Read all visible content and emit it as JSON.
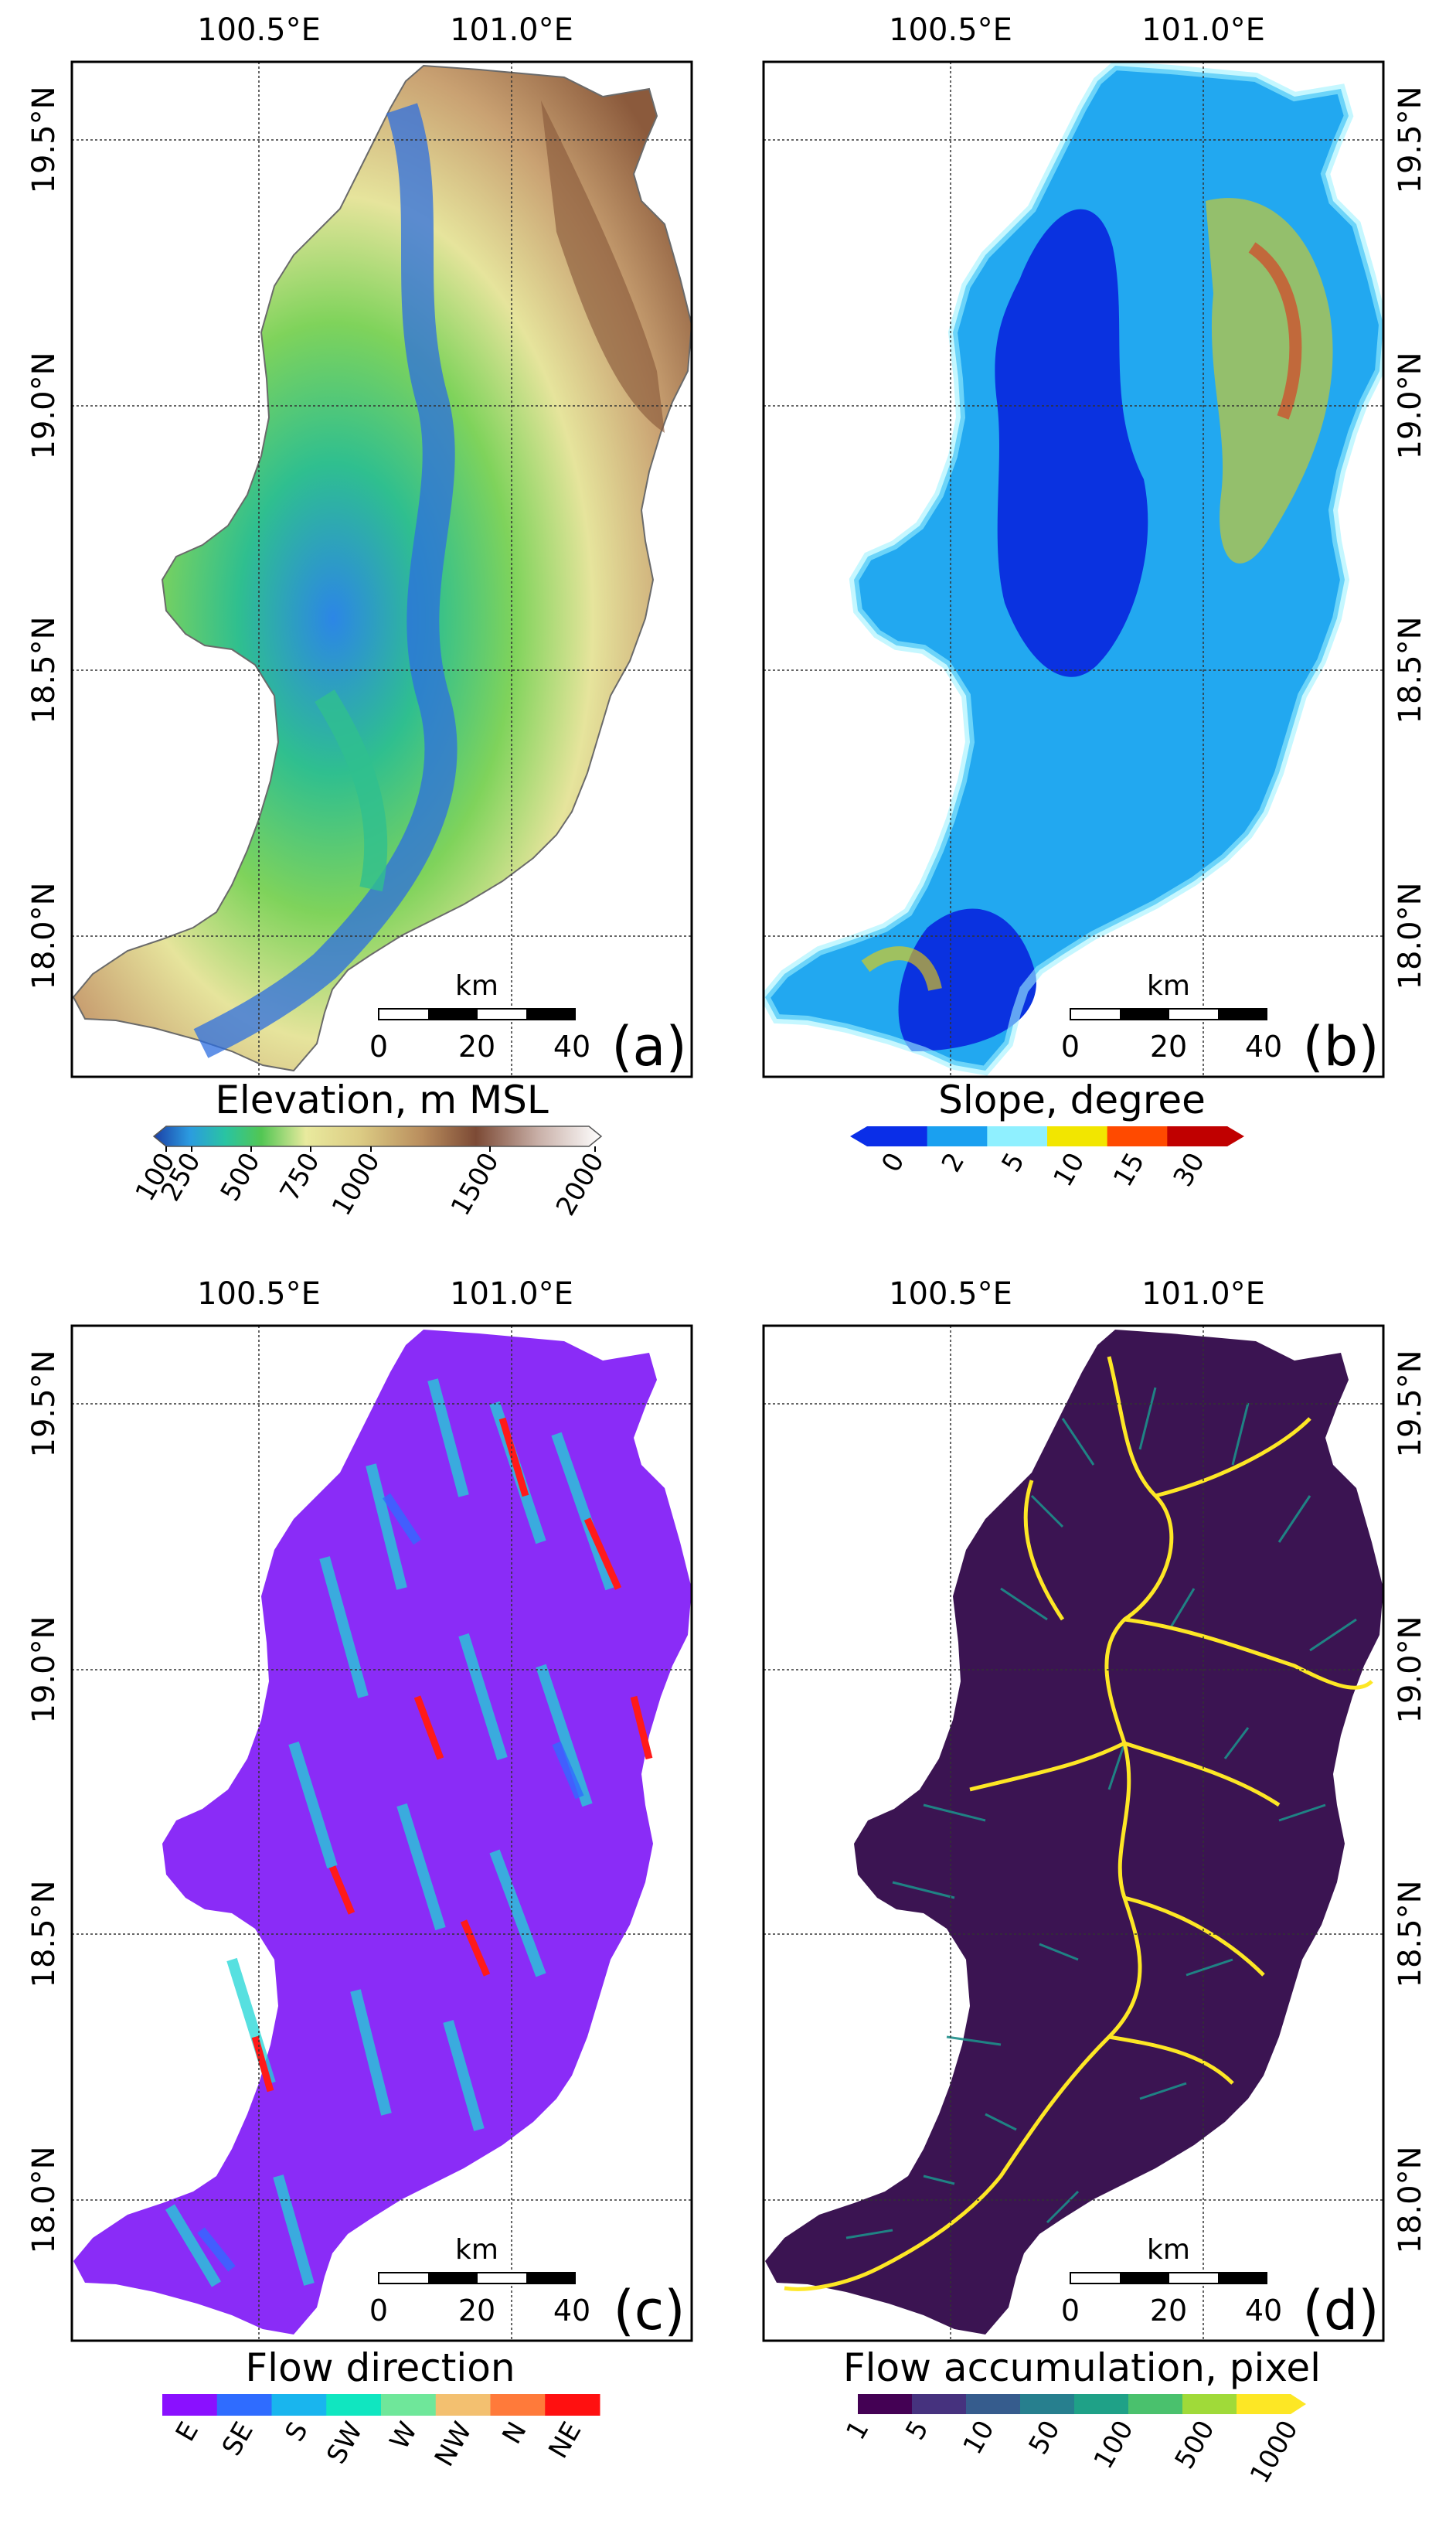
{
  "figure": {
    "panels": [
      {
        "id": "a",
        "panel_label": "(a)",
        "lon_labels": [
          "100.5°E",
          "101.0°E"
        ],
        "lat_labels": [
          "19.5°N",
          "19.0°N",
          "18.5°N",
          "18.0°N"
        ],
        "lat_label_side": "left",
        "scale_bar": {
          "unit": "km",
          "ticks": [
            "0",
            "20",
            "40"
          ]
        },
        "colorbar": {
          "title": "Elevation, m MSL",
          "type": "continuous",
          "tick_labels": [
            "100",
            "250",
            "500",
            "750",
            "1000",
            "1500",
            "2000"
          ],
          "colors": [
            "#1c3fa6",
            "#2b9be0",
            "#29c4a2",
            "#52c653",
            "#e9ea9e",
            "#dccc84",
            "#b98d5d",
            "#7c4a35",
            "#c9b0a8",
            "#ffffff"
          ]
        },
        "map_colors": {
          "lowland": "#2f8fe0",
          "plain": "#35c07e",
          "hills": "#e4e39a",
          "mountains": "#8b5a3c"
        }
      },
      {
        "id": "b",
        "panel_label": "(b)",
        "lon_labels": [
          "100.5°E",
          "101.0°E"
        ],
        "lat_labels": [
          "19.5°N",
          "19.0°N",
          "18.5°N",
          "18.0°N"
        ],
        "lat_label_side": "right",
        "scale_bar": {
          "unit": "km",
          "ticks": [
            "0",
            "20",
            "40"
          ]
        },
        "colorbar": {
          "title": "Slope, degree",
          "type": "discrete",
          "tick_labels": [
            "0",
            "2",
            "5",
            "10",
            "15",
            "30"
          ],
          "colors": [
            "#0a2ee8",
            "#1aa0f0",
            "#8ff0ff",
            "#f2e600",
            "#ff4a00",
            "#c00000"
          ]
        },
        "map_colors": {
          "flat": "#0a32e0",
          "gentle": "#22a8f0",
          "moderate": "#9ff2ff",
          "steep": "#f3d200",
          "very_steep": "#e0301a"
        }
      },
      {
        "id": "c",
        "panel_label": "(c)",
        "lon_labels": [
          "100.5°E",
          "101.0°E"
        ],
        "lat_labels": [
          "19.5°N",
          "19.0°N",
          "18.5°N",
          "18.0°N"
        ],
        "lat_label_side": "left",
        "scale_bar": {
          "unit": "km",
          "ticks": [
            "0",
            "20",
            "40"
          ]
        },
        "colorbar": {
          "title": "Flow direction",
          "type": "categorical",
          "tick_labels": [
            "E",
            "SE",
            "S",
            "SW",
            "W",
            "NW",
            "N",
            "NE"
          ],
          "colors": [
            "#8a10ff",
            "#2f6cff",
            "#19b5ee",
            "#10e6c0",
            "#6fe79a",
            "#f3c070",
            "#ff7a3a",
            "#ff1010"
          ]
        },
        "map_colors": {
          "base": "#8a2cf7",
          "streaks": "#1fd5d5",
          "accent": "#ff1a1a"
        }
      },
      {
        "id": "d",
        "panel_label": "(d)",
        "lon_labels": [
          "100.5°E",
          "101.0°E"
        ],
        "lat_labels": [
          "19.5°N",
          "19.0°N",
          "18.5°N",
          "18.0°N"
        ],
        "lat_label_side": "right",
        "scale_bar": {
          "unit": "km",
          "ticks": [
            "0",
            "20",
            "40"
          ]
        },
        "colorbar": {
          "title": "Flow accumulation, pixel",
          "type": "discrete",
          "tick_labels": [
            "1",
            "5",
            "10",
            "50",
            "100",
            "500",
            "1000"
          ],
          "colors": [
            "#440154",
            "#46327e",
            "#365c8d",
            "#277f8e",
            "#1fa187",
            "#4ac16d",
            "#a0da39",
            "#fde725"
          ]
        },
        "map_colors": {
          "background": "#3b1452",
          "tributaries": "#1d8f8a",
          "main_river": "#fde725"
        }
      }
    ]
  }
}
